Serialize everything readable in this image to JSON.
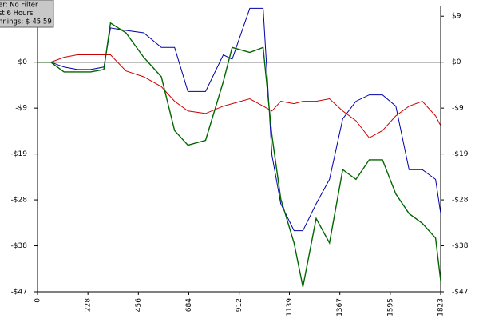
{
  "chart_data": {
    "type": "line",
    "legend_lines": [
      "er: No Filter",
      "st  6 Hours",
      "nnings: $-45.59"
    ],
    "x": [
      0,
      60,
      120,
      180,
      240,
      300,
      330,
      400,
      480,
      560,
      620,
      680,
      760,
      840,
      880,
      960,
      1020,
      1060,
      1100,
      1160,
      1200,
      1260,
      1320,
      1380,
      1440,
      1500,
      1560,
      1620,
      1680,
      1740,
      1800,
      1823
    ],
    "xlim": [
      0,
      1823
    ],
    "xticks": [
      0,
      228,
      456,
      684,
      912,
      1139,
      1367,
      1595,
      1823
    ],
    "ylim": [
      -47,
      11.4
    ],
    "yticks": [
      {
        "value": 9.4,
        "label": "$9"
      },
      {
        "value": 0,
        "label": "$0"
      },
      {
        "value": -9.4,
        "label": "-$9"
      },
      {
        "value": -18.8,
        "label": "-$19"
      },
      {
        "value": -28.2,
        "label": "-$28"
      },
      {
        "value": -37.6,
        "label": "-$38"
      },
      {
        "value": -47,
        "label": "-$47"
      }
    ],
    "y2lim": [
      -47,
      11.4
    ],
    "y2ticks": [
      {
        "value": 9.4,
        "label": "$9"
      },
      {
        "value": 0,
        "label": "$0"
      },
      {
        "value": -9.4,
        "label": "-$9"
      },
      {
        "value": -18.8,
        "label": "-$19"
      },
      {
        "value": -28.2,
        "label": "-$28"
      },
      {
        "value": -37.6,
        "label": "-$38"
      },
      {
        "value": -47,
        "label": "-$47"
      }
    ],
    "series": [
      {
        "color": "#0000aa",
        "values": [
          0,
          0,
          -1,
          -1.5,
          -1.5,
          -1,
          7,
          6.5,
          6,
          3,
          3,
          -6,
          -6,
          1.5,
          0.6,
          11,
          11,
          -19,
          -29,
          -34.5,
          -34.5,
          -29,
          -24,
          -11.6,
          -8,
          -6.7,
          -6.7,
          -9,
          -22,
          -22,
          -24,
          -31
        ]
      },
      {
        "color": "#cc0000",
        "values": [
          0,
          0,
          1,
          1.5,
          1.5,
          1.5,
          1.5,
          -1.8,
          -3,
          -5,
          -8,
          -10,
          -10.5,
          -9,
          -8.5,
          -7.5,
          -9,
          -10,
          -8,
          -8.5,
          -8,
          -8,
          -7.5,
          -10,
          -12,
          -15.5,
          -14,
          -11,
          -9,
          -8,
          -11,
          -13
        ]
      },
      {
        "color": "#006600",
        "values": [
          0,
          0,
          -2,
          -2,
          -2,
          -1.5,
          8,
          6,
          1,
          -3,
          -14,
          -17,
          -16,
          -4,
          3,
          2,
          3,
          -15,
          -28,
          -37,
          -46,
          -32,
          -37,
          -22,
          -24,
          -20,
          -20,
          -27,
          -31,
          -33,
          -36,
          -44.8
        ]
      }
    ]
  }
}
